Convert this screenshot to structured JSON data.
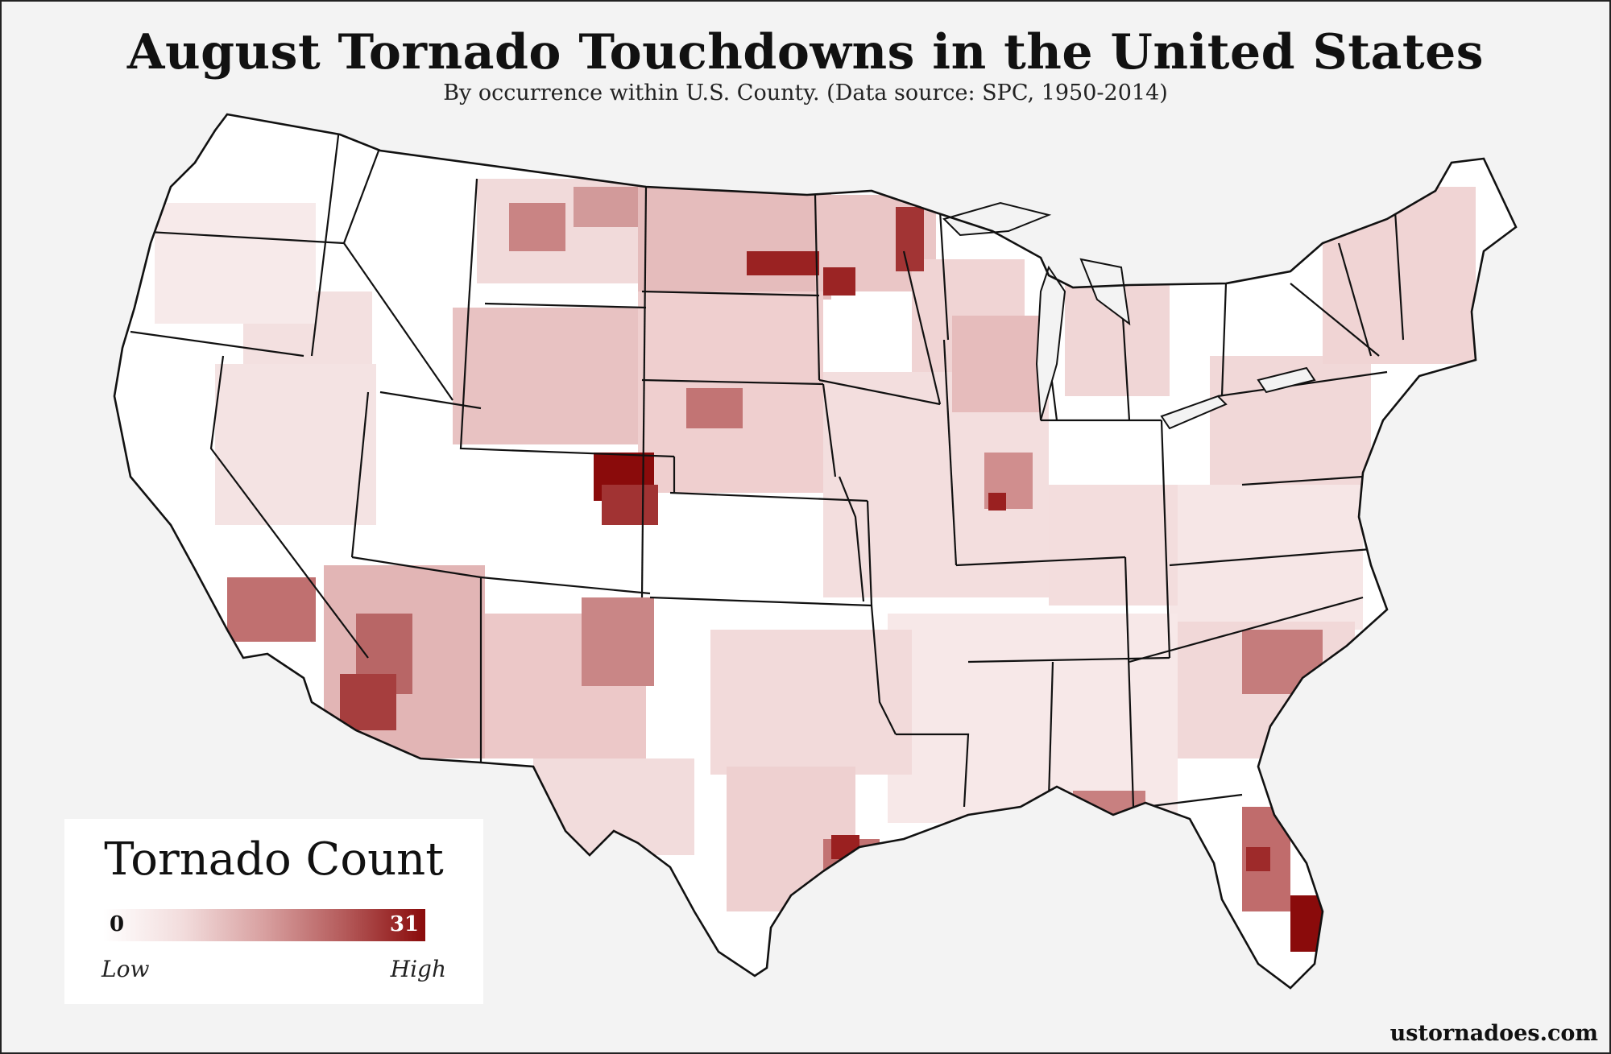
{
  "title": "August Tornado Touchdowns in the United States",
  "subtitle": "By occurrence within U.S. County. (Data source: SPC, 1950-2014)",
  "legend": {
    "title": "Tornado Count",
    "min": "0",
    "max": "31",
    "low_label": "Low",
    "high_label": "High"
  },
  "credit": "ustornadoes.com",
  "colors": {
    "background": "#f3f3f3",
    "land": "#ffffff",
    "scale_low": "#ffffff",
    "scale_high": "#8a0b0b",
    "state_border": "#111111",
    "county_border": "#9a8a8a"
  }
}
